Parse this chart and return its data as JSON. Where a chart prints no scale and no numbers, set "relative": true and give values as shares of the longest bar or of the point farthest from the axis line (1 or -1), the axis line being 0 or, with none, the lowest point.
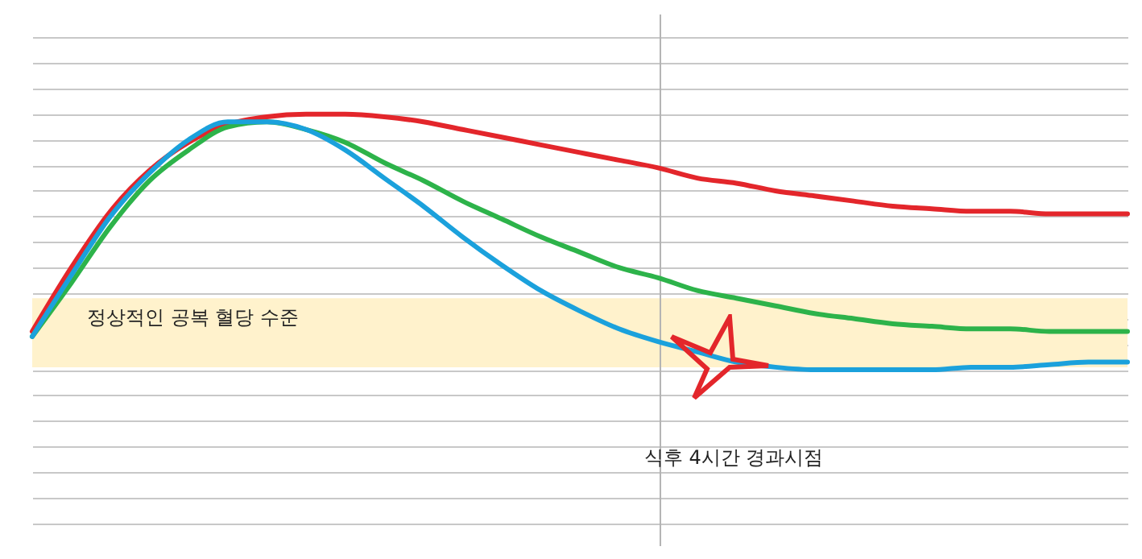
{
  "chart_data": {
    "type": "line",
    "relative": true,
    "grid": "y",
    "categories": [
      null,
      null,
      null,
      null,
      null,
      null,
      null,
      null,
      null,
      null,
      null,
      null,
      null,
      null,
      null,
      null,
      null,
      null,
      null,
      null,
      null,
      null,
      null,
      null,
      null,
      null,
      null,
      null,
      null
    ],
    "series": [
      {
        "color": "#e3262b",
        "values": [
          0.15,
          0.4,
          0.62,
          0.78,
          0.89,
          0.96,
          0.99,
          1,
          1,
          0.99,
          0.97,
          0.94,
          0.91,
          0.88,
          0.85,
          0.82,
          0.79,
          0.75,
          0.73,
          0.7,
          0.68,
          0.66,
          0.64,
          0.63,
          0.62,
          0.62,
          0.61,
          0.61,
          0.61
        ]
      },
      {
        "color": "#2db34a",
        "values": [
          0.13,
          0.34,
          0.56,
          0.74,
          0.86,
          0.95,
          0.97,
          0.94,
          0.89,
          0.81,
          0.74,
          0.66,
          0.59,
          0.52,
          0.46,
          0.4,
          0.36,
          0.31,
          0.28,
          0.25,
          0.22,
          0.2,
          0.18,
          0.17,
          0.16,
          0.16,
          0.15,
          0.15,
          0.15
        ]
      },
      {
        "color": "#1ba1dc",
        "values": [
          0.13,
          0.37,
          0.6,
          0.77,
          0.9,
          0.97,
          0.97,
          0.94,
          0.86,
          0.75,
          0.64,
          0.52,
          0.41,
          0.31,
          0.23,
          0.16,
          0.11,
          0.07,
          0.03,
          0.01,
          0,
          0,
          0,
          0,
          0.01,
          0.01,
          0.02,
          0.03,
          0.03
        ]
      }
    ],
    "bands": [
      {
        "axis": "y",
        "from": 0.01,
        "to": 0.28,
        "label": "정상적인 공복 혈당 수준",
        "color": "#fff2cc"
      }
    ],
    "ref_lines": [
      {
        "axis": "x",
        "label": "식후 4시간 경과시점",
        "color": "#b3b3b3"
      }
    ]
  }
}
